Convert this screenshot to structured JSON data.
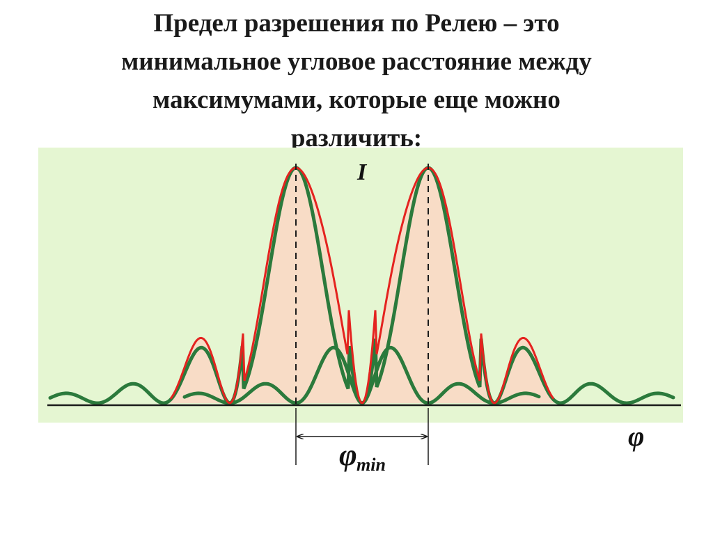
{
  "title": {
    "lines": [
      "Предел разрешения по Релею – это",
      "минимальное угловое расстояние между",
      "максимумами, которые еще можно",
      "различить:"
    ]
  },
  "diagram": {
    "labels": {
      "intensity": "I",
      "angle": "φ",
      "phi_min_symbol": "φ",
      "phi_min_subscript": "min"
    },
    "colors": {
      "background": "#e5f6d2",
      "fill": "#f8dcc6",
      "sum_curve": "#e4231f",
      "peak_curve": "#2b7a3c",
      "axis": "#1a1a1a"
    }
  }
}
